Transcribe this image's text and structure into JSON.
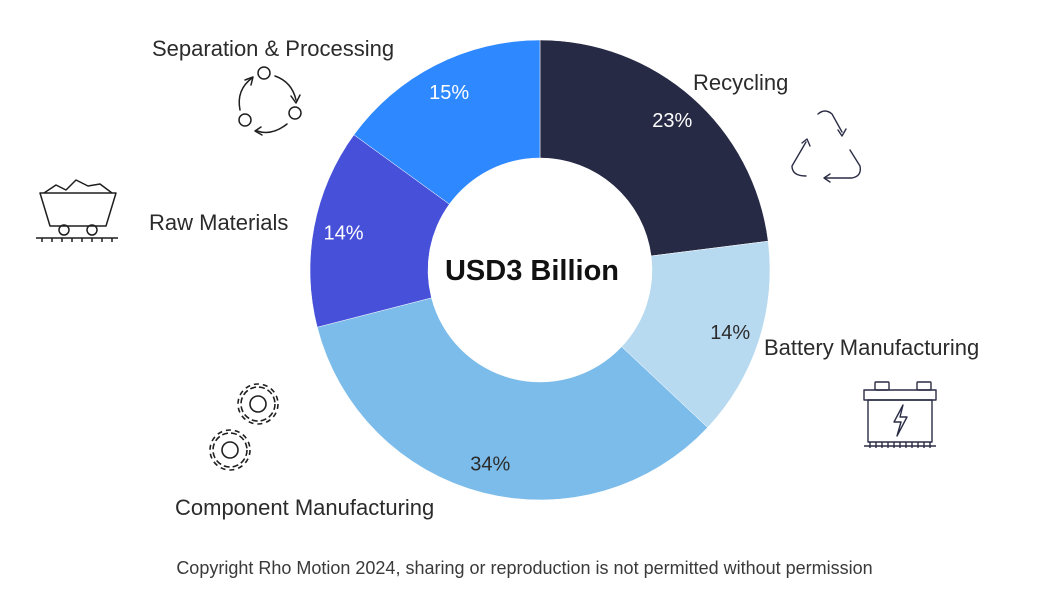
{
  "chart_data": {
    "type": "pie",
    "center_label": "USD3 Billion",
    "categories": [
      "Recycling",
      "Battery Manufacturing",
      "Component Manufacturing",
      "Raw Materials",
      "Separation & Processing"
    ],
    "values": [
      23,
      14,
      34,
      14,
      15
    ],
    "value_labels": [
      "23%",
      "14%",
      "34%",
      "14%",
      "15%"
    ],
    "colors": [
      "#272a45",
      "#b8daf1",
      "#7cbcea",
      "#4650d9",
      "#2e88ff"
    ],
    "label_colors": [
      "#ffffff",
      "#2b2b2b",
      "#2b2b2b",
      "#ffffff",
      "#ffffff"
    ]
  },
  "icons": {
    "recycling": "recycle-icon",
    "battery": "battery-icon",
    "component": "gears-icon",
    "raw": "mine-cart-icon",
    "separation": "cycle-process-icon"
  },
  "footer": "Copyright Rho Motion 2024, sharing or reproduction is not permitted without permission"
}
